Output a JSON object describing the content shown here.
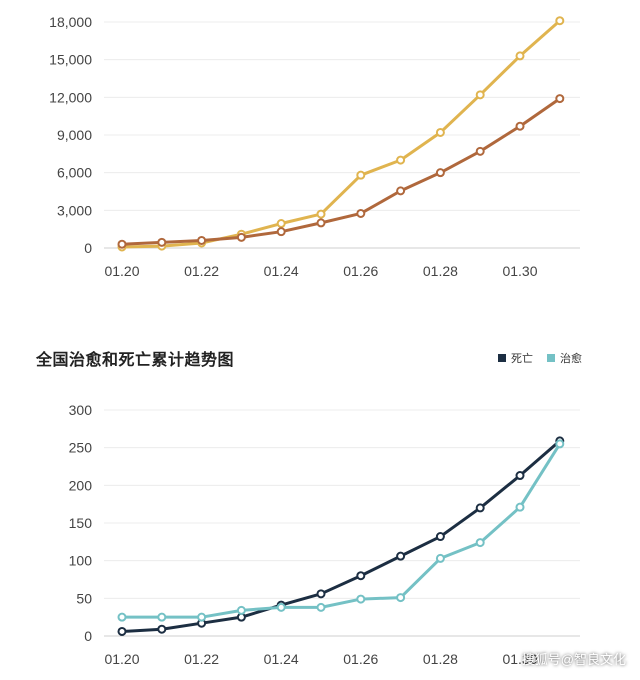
{
  "charts": [
    {
      "id": "top",
      "title": "",
      "legend": [],
      "chart_data": {
        "type": "line",
        "x": [
          "01.20",
          "01.21",
          "01.22",
          "01.23",
          "01.24",
          "01.25",
          "01.26",
          "01.27",
          "01.28",
          "01.29",
          "01.30",
          "01.31"
        ],
        "x_ticks": [
          "01.20",
          "01.22",
          "01.24",
          "01.26",
          "01.28",
          "01.30"
        ],
        "y_ticks": [
          "0",
          "3,000",
          "6,000",
          "9,000",
          "12,000",
          "15,000",
          "18,000"
        ],
        "ylim": [
          0,
          18000
        ],
        "grid": true,
        "series": [
          {
            "name": "",
            "color": "#e0b44f",
            "values": [
              80,
              150,
              400,
              1100,
              1950,
              2700,
              5800,
              7000,
              9200,
              12200,
              15300,
              18100
            ]
          },
          {
            "name": "",
            "color": "#b0683c",
            "values": [
              300,
              450,
              600,
              850,
              1300,
              2000,
              2750,
              4550,
              6000,
              7700,
              9700,
              11900
            ]
          }
        ]
      }
    },
    {
      "id": "bottom",
      "title": "全国治愈和死亡累计趋势图",
      "legend": [
        {
          "label": "死亡",
          "color": "#1c2e42"
        },
        {
          "label": "治愈",
          "color": "#74c1c5"
        }
      ],
      "chart_data": {
        "type": "line",
        "title": "全国治愈和死亡累计趋势图",
        "x": [
          "01.20",
          "01.21",
          "01.22",
          "01.23",
          "01.24",
          "01.25",
          "01.26",
          "01.27",
          "01.28",
          "01.29",
          "01.30",
          "01.31"
        ],
        "x_ticks": [
          "01.20",
          "01.22",
          "01.24",
          "01.26",
          "01.28",
          "01.30"
        ],
        "y_ticks": [
          "0",
          "50",
          "100",
          "150",
          "200",
          "250",
          "300"
        ],
        "ylim": [
          0,
          300
        ],
        "grid": true,
        "series": [
          {
            "name": "死亡",
            "color": "#1c2e42",
            "values": [
              6,
              9,
              17,
              25,
              41,
              56,
              80,
              106,
              132,
              170,
              213,
              259
            ]
          },
          {
            "name": "治愈",
            "color": "#74c1c5",
            "values": [
              25,
              25,
              25,
              34,
              38,
              38,
              49,
              51,
              103,
              124,
              171,
              255
            ]
          }
        ]
      }
    }
  ],
  "watermark": "搜狐号@智良文化"
}
